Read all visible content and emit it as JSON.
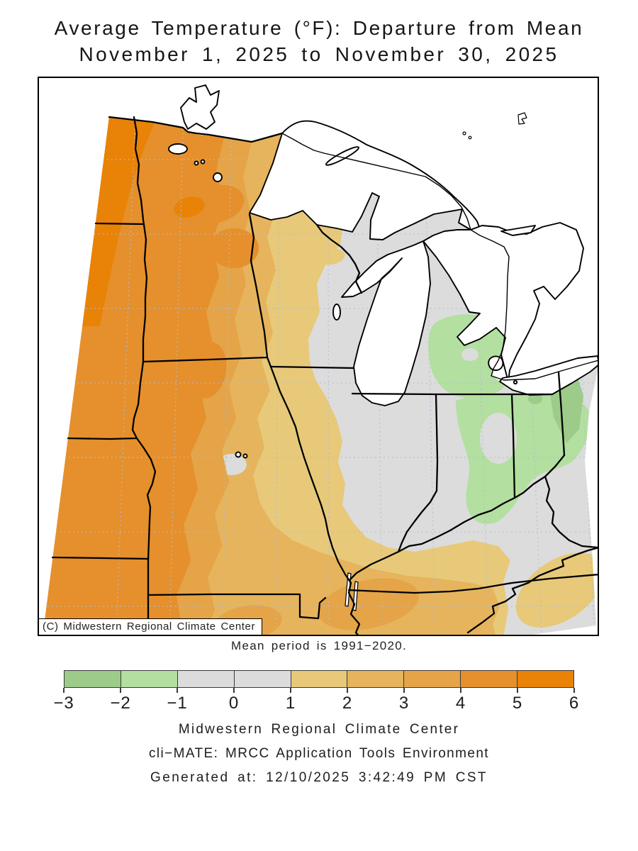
{
  "title": {
    "line1": "Average Temperature (°F): Departure from Mean",
    "line2": "November 1, 2025 to November 30, 2025"
  },
  "map": {
    "copyright": "(C) Midwestern Regional Climate Center",
    "note": "Mean period is 1991−2020."
  },
  "legend": {
    "tick_labels": [
      "−3",
      "−2",
      "−1",
      "0",
      "1",
      "2",
      "3",
      "4",
      "5",
      "6"
    ],
    "segment_colors": [
      "#9ccb8a",
      "#b3dfa0",
      "#dcdcdc",
      "#dcdcdc",
      "#e7c979",
      "#e6b45c",
      "#e4a447",
      "#e5902c",
      "#e88308"
    ],
    "units": "°F departure"
  },
  "map_palette": {
    "gray": "#dcdcdc",
    "green_dark": "#9ccb8a",
    "green_light": "#b3dfa0",
    "p1": "#e7c979",
    "p2": "#e6b45c",
    "p3": "#e4a447",
    "p4": "#e5902c",
    "p5": "#e88308",
    "grid": "#b4bcd4",
    "water": "#ffffff",
    "border": "#000000"
  },
  "footer": {
    "line1": "Midwestern Regional Climate Center",
    "line2": "cli−MATE: MRCC Application Tools Environment",
    "line3": "Generated at: 12/10/2025 3:42:49 PM CST"
  }
}
